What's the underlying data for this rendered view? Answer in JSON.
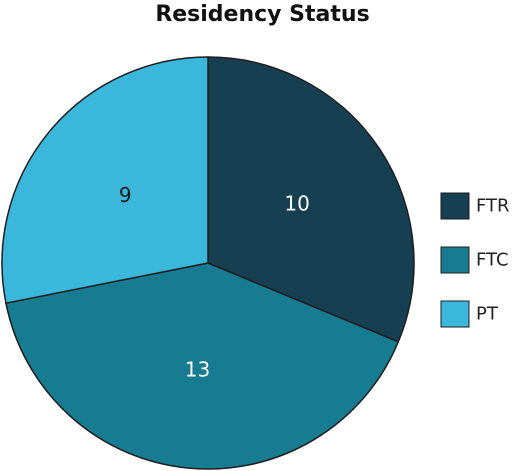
{
  "chart_data": {
    "type": "pie",
    "title": "Residency Status",
    "categories": [
      "FTR",
      "FTC",
      "PT"
    ],
    "values": [
      10,
      13,
      9
    ],
    "colors": [
      "#163f52",
      "#177c91",
      "#3cb7dc"
    ],
    "data_label_colors": [
      "#ffffff",
      "#ffffff",
      "#1a1a1a"
    ],
    "legend_position": "right"
  }
}
